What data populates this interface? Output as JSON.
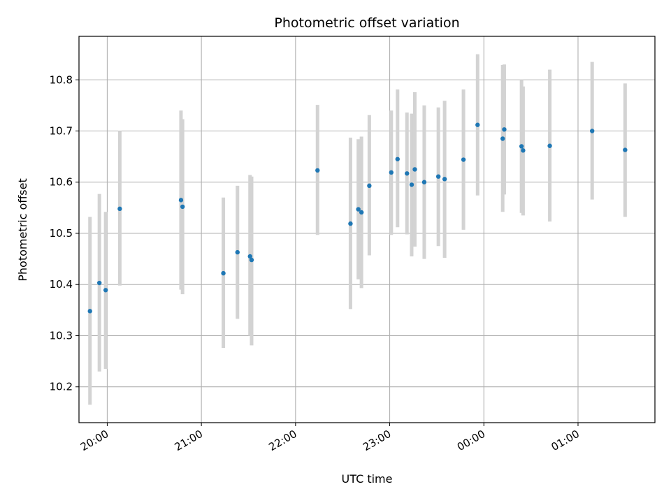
{
  "chart_data": {
    "type": "scatter",
    "title": "Photometric offset variation",
    "xlabel": "UTC time",
    "ylabel": "Photometric offset",
    "x_ticks": [
      "20:00",
      "21:00",
      "22:00",
      "23:00",
      "00:00",
      "01:00"
    ],
    "y_ticks": [
      "10.2",
      "10.3",
      "10.4",
      "10.5",
      "10.6",
      "10.7",
      "10.8"
    ],
    "xlim": [
      "19:42",
      "01:49"
    ],
    "ylim": [
      10.13,
      10.885
    ],
    "grid": true,
    "colors": {
      "point": "#1f77b4",
      "errorbar": "#d3d3d3",
      "grid": "#b0b0b0"
    },
    "series": [
      {
        "points": [
          {
            "t": "19:49",
            "y": 10.348,
            "lo": 10.165,
            "hi": 10.532
          },
          {
            "t": "19:55",
            "y": 10.403,
            "lo": 10.23,
            "hi": 10.577
          },
          {
            "t": "19:59",
            "y": 10.389,
            "lo": 10.235,
            "hi": 10.542
          },
          {
            "t": "20:08",
            "y": 10.548,
            "lo": 10.398,
            "hi": 10.7
          },
          {
            "t": "20:47",
            "y": 10.565,
            "lo": 10.39,
            "hi": 10.74
          },
          {
            "t": "20:48",
            "y": 10.552,
            "lo": 10.381,
            "hi": 10.723
          },
          {
            "t": "21:14",
            "y": 10.422,
            "lo": 10.276,
            "hi": 10.57
          },
          {
            "t": "21:23",
            "y": 10.463,
            "lo": 10.333,
            "hi": 10.593
          },
          {
            "t": "21:31",
            "y": 10.455,
            "lo": 10.3,
            "hi": 10.614
          },
          {
            "t": "21:32",
            "y": 10.448,
            "lo": 10.281,
            "hi": 10.611
          },
          {
            "t": "22:14",
            "y": 10.623,
            "lo": 10.497,
            "hi": 10.751
          },
          {
            "t": "22:35",
            "y": 10.519,
            "lo": 10.352,
            "hi": 10.687
          },
          {
            "t": "22:40",
            "y": 10.547,
            "lo": 10.41,
            "hi": 10.684
          },
          {
            "t": "22:42",
            "y": 10.541,
            "lo": 10.393,
            "hi": 10.689
          },
          {
            "t": "22:47",
            "y": 10.593,
            "lo": 10.457,
            "hi": 10.731
          },
          {
            "t": "23:01",
            "y": 10.619,
            "lo": 10.497,
            "hi": 10.74
          },
          {
            "t": "23:05",
            "y": 10.645,
            "lo": 10.512,
            "hi": 10.781
          },
          {
            "t": "23:11",
            "y": 10.617,
            "lo": 10.498,
            "hi": 10.736
          },
          {
            "t": "23:14",
            "y": 10.595,
            "lo": 10.455,
            "hi": 10.734
          },
          {
            "t": "23:16",
            "y": 10.625,
            "lo": 10.474,
            "hi": 10.776
          },
          {
            "t": "23:22",
            "y": 10.6,
            "lo": 10.45,
            "hi": 10.75
          },
          {
            "t": "23:31",
            "y": 10.611,
            "lo": 10.475,
            "hi": 10.746
          },
          {
            "t": "23:35",
            "y": 10.606,
            "lo": 10.452,
            "hi": 10.759
          },
          {
            "t": "23:47",
            "y": 10.644,
            "lo": 10.507,
            "hi": 10.781
          },
          {
            "t": "23:56",
            "y": 10.712,
            "lo": 10.574,
            "hi": 10.85
          },
          {
            "t": "00:12",
            "y": 10.685,
            "lo": 10.542,
            "hi": 10.829
          },
          {
            "t": "00:13",
            "y": 10.703,
            "lo": 10.576,
            "hi": 10.83
          },
          {
            "t": "00:24",
            "y": 10.67,
            "lo": 10.54,
            "hi": 10.8
          },
          {
            "t": "00:25",
            "y": 10.662,
            "lo": 10.535,
            "hi": 10.787
          },
          {
            "t": "00:42",
            "y": 10.671,
            "lo": 10.523,
            "hi": 10.82
          },
          {
            "t": "01:09",
            "y": 10.7,
            "lo": 10.566,
            "hi": 10.835
          },
          {
            "t": "01:30",
            "y": 10.663,
            "lo": 10.532,
            "hi": 10.793
          }
        ]
      }
    ]
  }
}
